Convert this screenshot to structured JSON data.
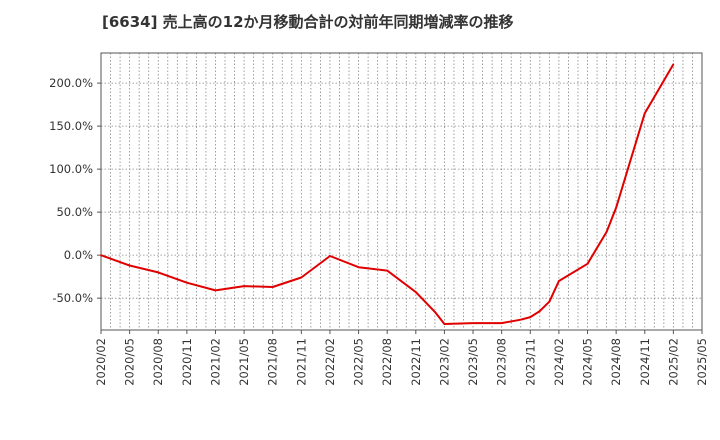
{
  "chart_data": {
    "type": "line",
    "title": "[6634]  売上高の12か月移動合計の対前年同期増減率の推移",
    "xlabel": "",
    "ylabel": "",
    "ylim": [
      -87,
      235
    ],
    "y_ticks": [
      200,
      150,
      100,
      50,
      0,
      -50
    ],
    "y_tick_labels": [
      "200.0%",
      "150.0%",
      "100.0%",
      "50.0%",
      "0.0%",
      "-50.0%"
    ],
    "x_tick_labels": [
      "2020/02",
      "2020/05",
      "2020/08",
      "2020/11",
      "2021/02",
      "2021/05",
      "2021/08",
      "2021/11",
      "2022/02",
      "2022/05",
      "2022/08",
      "2022/11",
      "2023/02",
      "2023/05",
      "2023/08",
      "2023/11",
      "2024/02",
      "2024/05",
      "2024/08",
      "2024/11",
      "2025/02",
      "2025/05"
    ],
    "series": [
      {
        "name": "対前年同期増減率",
        "color": "#e00000",
        "x": [
          0,
          3,
          6,
          9,
          12,
          15,
          18,
          21,
          24,
          27,
          30,
          33,
          35,
          36,
          39,
          42,
          44,
          45,
          46,
          47,
          48,
          51,
          53,
          54,
          57,
          60
        ],
        "values": [
          0,
          -12,
          -20,
          -32,
          -41,
          -36,
          -37,
          -26,
          -1,
          -14,
          -18,
          -43,
          -66,
          -80,
          -79,
          -79,
          -75,
          -72,
          -65,
          -54,
          -30,
          -10,
          27,
          55,
          165,
          222
        ]
      }
    ]
  }
}
